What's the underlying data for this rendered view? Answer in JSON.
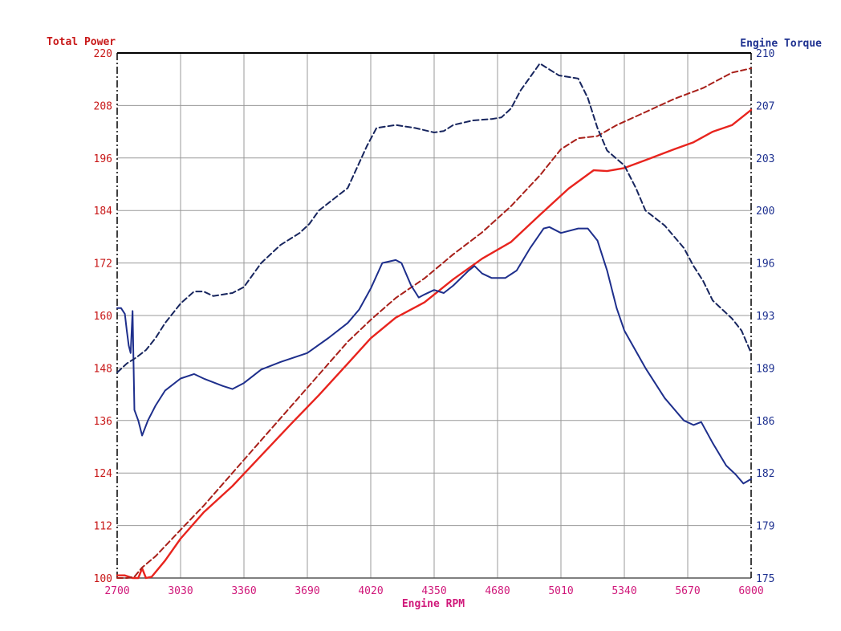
{
  "chart_data": {
    "type": "line",
    "xlabel": "Engine RPM",
    "ylabel_left": "Total Power",
    "ylabel_right": "Engine Torque",
    "xlim": [
      2700,
      6000
    ],
    "ylim_left": [
      100,
      220
    ],
    "ylim_right": [
      175,
      210
    ],
    "x_ticks": [
      "2700",
      "3030",
      "3360",
      "3690",
      "4020",
      "4350",
      "4680",
      "5010",
      "5340",
      "5670",
      "6000"
    ],
    "y_ticks_left": [
      "100",
      "112",
      "124",
      "136",
      "148",
      "160",
      "172",
      "184",
      "196",
      "208",
      "220"
    ],
    "y_ticks_right": [
      "175",
      "179",
      "182",
      "186",
      "189",
      "193",
      "196",
      "200",
      "203",
      "207",
      "210"
    ],
    "grid": true,
    "colors": {
      "power": "#e8241e",
      "power_dashed": "#a8201a",
      "torque": "#1e2f8c",
      "torque_dashed": "#17255e",
      "left_axis_text": "#c81818",
      "right_axis_text": "#1e3190",
      "x_axis_text": "#d0187a",
      "grid": "#9a9a9a"
    },
    "series": [
      {
        "axis": "left",
        "style": "solid",
        "x": [
          2700,
          2740,
          2780,
          2810,
          2830,
          2850,
          2880,
          2950,
          3030,
          3150,
          3300,
          3450,
          3600,
          3750,
          3900,
          4020,
          4150,
          4300,
          4450,
          4600,
          4750,
          4900,
          5050,
          5180,
          5250,
          5340,
          5450,
          5600,
          5700,
          5800,
          5900,
          6000
        ],
        "y": [
          100.6,
          100.6,
          100.0,
          100.0,
          102.2,
          100.0,
          100.3,
          104.0,
          109.0,
          115.0,
          121.0,
          128.0,
          135.0,
          141.8,
          149.0,
          154.8,
          159.5,
          163.0,
          168.3,
          173.0,
          176.8,
          183.0,
          189.0,
          193.2,
          193.0,
          193.7,
          195.5,
          198.0,
          199.6,
          202.0,
          203.5,
          207.0
        ]
      },
      {
        "axis": "left",
        "style": "dashed",
        "x": [
          2700,
          2750,
          2790,
          2830,
          2900,
          3030,
          3150,
          3300,
          3450,
          3600,
          3750,
          3900,
          4020,
          4150,
          4300,
          4450,
          4600,
          4750,
          4900,
          5010,
          5100,
          5200,
          5300,
          5450,
          5600,
          5750,
          5900,
          6000
        ],
        "y": [
          100.0,
          100.0,
          100.3,
          102.4,
          105.0,
          111.0,
          116.5,
          124.0,
          131.5,
          139.0,
          146.5,
          154.0,
          159.0,
          164.0,
          168.5,
          174.0,
          179.0,
          185.0,
          192.0,
          198.0,
          200.5,
          201.0,
          203.5,
          206.5,
          209.5,
          212.0,
          215.5,
          216.5
        ]
      },
      {
        "axis": "right",
        "style": "solid",
        "x": [
          2700,
          2720,
          2740,
          2750,
          2760,
          2770,
          2780,
          2790,
          2810,
          2830,
          2860,
          2900,
          2950,
          3030,
          3100,
          3150,
          3250,
          3300,
          3360,
          3450,
          3550,
          3690,
          3800,
          3900,
          3960,
          4020,
          4080,
          4150,
          4180,
          4230,
          4270,
          4300,
          4350,
          4400,
          4450,
          4530,
          4560,
          4600,
          4650,
          4720,
          4780,
          4850,
          4920,
          4950,
          5010,
          5100,
          5150,
          5200,
          5250,
          5300,
          5340,
          5450,
          5550,
          5650,
          5700,
          5740,
          5800,
          5870,
          5920,
          5960,
          6000
        ],
        "y": [
          193.0,
          193.0,
          192.6,
          191.5,
          190.5,
          190.0,
          192.8,
          186.2,
          185.5,
          184.5,
          185.5,
          186.5,
          187.5,
          188.3,
          188.6,
          188.3,
          187.8,
          187.6,
          188.0,
          188.9,
          189.4,
          190.0,
          191.0,
          192.0,
          192.9,
          194.3,
          196.0,
          196.2,
          196.0,
          194.5,
          193.7,
          193.9,
          194.2,
          194.0,
          194.5,
          195.5,
          195.8,
          195.3,
          195.0,
          195.0,
          195.5,
          197.0,
          198.3,
          198.4,
          198.0,
          198.3,
          198.3,
          197.5,
          195.5,
          193.0,
          191.5,
          189.0,
          187.0,
          185.5,
          185.2,
          185.4,
          184.0,
          182.5,
          181.9,
          181.3,
          181.6
        ]
      },
      {
        "axis": "right",
        "style": "dashed",
        "x": [
          2700,
          2750,
          2800,
          2850,
          2900,
          2950,
          3030,
          3100,
          3150,
          3200,
          3300,
          3360,
          3450,
          3550,
          3650,
          3700,
          3750,
          3800,
          3900,
          4000,
          4050,
          4150,
          4250,
          4350,
          4400,
          4450,
          4550,
          4650,
          4700,
          4750,
          4800,
          4900,
          5000,
          5050,
          5100,
          5150,
          5200,
          5250,
          5340,
          5400,
          5450,
          5550,
          5650,
          5700,
          5750,
          5800,
          5900,
          5950,
          6000
        ],
        "y": [
          188.7,
          189.3,
          189.7,
          190.2,
          191.0,
          192.0,
          193.3,
          194.1,
          194.1,
          193.8,
          194.0,
          194.4,
          196.0,
          197.2,
          198.0,
          198.6,
          199.5,
          200.0,
          201.0,
          203.8,
          205.0,
          205.2,
          205.0,
          204.7,
          204.8,
          205.2,
          205.5,
          205.6,
          205.7,
          206.3,
          207.5,
          209.3,
          208.5,
          208.4,
          208.3,
          207.0,
          205.0,
          203.5,
          202.5,
          201.0,
          199.5,
          198.5,
          197.0,
          195.8,
          194.8,
          193.5,
          192.3,
          191.5,
          190.0
        ]
      }
    ]
  }
}
